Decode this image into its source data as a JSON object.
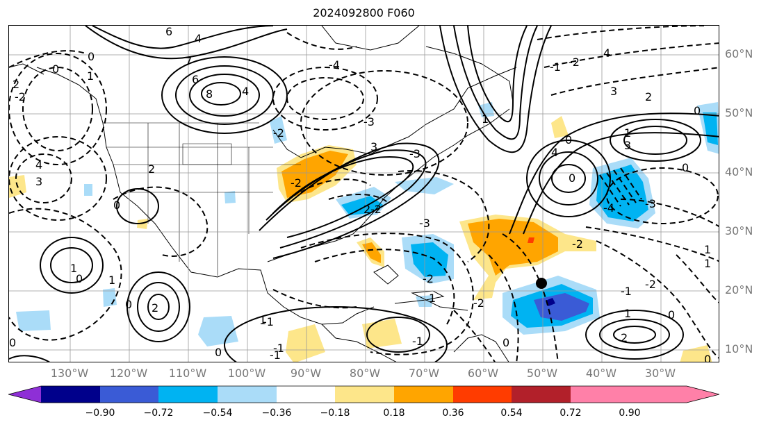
{
  "title": "2024092800 F060",
  "lat_labels": [
    "60°N",
    "50°N",
    "40°N",
    "30°N",
    "20°N",
    "10°N"
  ],
  "lon_labels": [
    "130°W",
    "120°W",
    "110°W",
    "100°W",
    "90°W",
    "80°W",
    "70°W",
    "60°W",
    "50°W",
    "40°W",
    "30°W"
  ],
  "colorbar": {
    "ticks": [
      "−0.90",
      "−0.72",
      "−0.54",
      "−0.36",
      "−0.18",
      "0.18",
      "0.36",
      "0.54",
      "0.72",
      "0.90"
    ],
    "colors": [
      "#8e2fd6",
      "#00008b",
      "#3a5bd6",
      "#00b3f2",
      "#aadcf8",
      "#ffffff",
      "#fde68a",
      "#ffa500",
      "#ff3c00",
      "#b2202a",
      "#ff80a8"
    ]
  },
  "contour_labels": [
    "6",
    "4",
    "6",
    "8",
    "4",
    "7",
    "0",
    "1",
    "0",
    "2",
    "4",
    "3",
    "2",
    "-2",
    "-4",
    "-3",
    "0",
    "1",
    "0",
    "2",
    "-2",
    "-2",
    "1",
    "0",
    "-1",
    "-3",
    "-2",
    "0",
    "1",
    "-1",
    "2",
    "3",
    "-3",
    "-2",
    "0",
    "-1",
    "-1",
    "1",
    "-2",
    "0",
    "4",
    "0",
    "1",
    "0",
    "-2",
    "-1",
    "4",
    "3",
    "0",
    "2",
    "1",
    "-4",
    "-3",
    "1",
    "3",
    "0",
    "-2",
    "-1",
    "0",
    "-2",
    "1",
    "0",
    "1",
    "2"
  ]
}
